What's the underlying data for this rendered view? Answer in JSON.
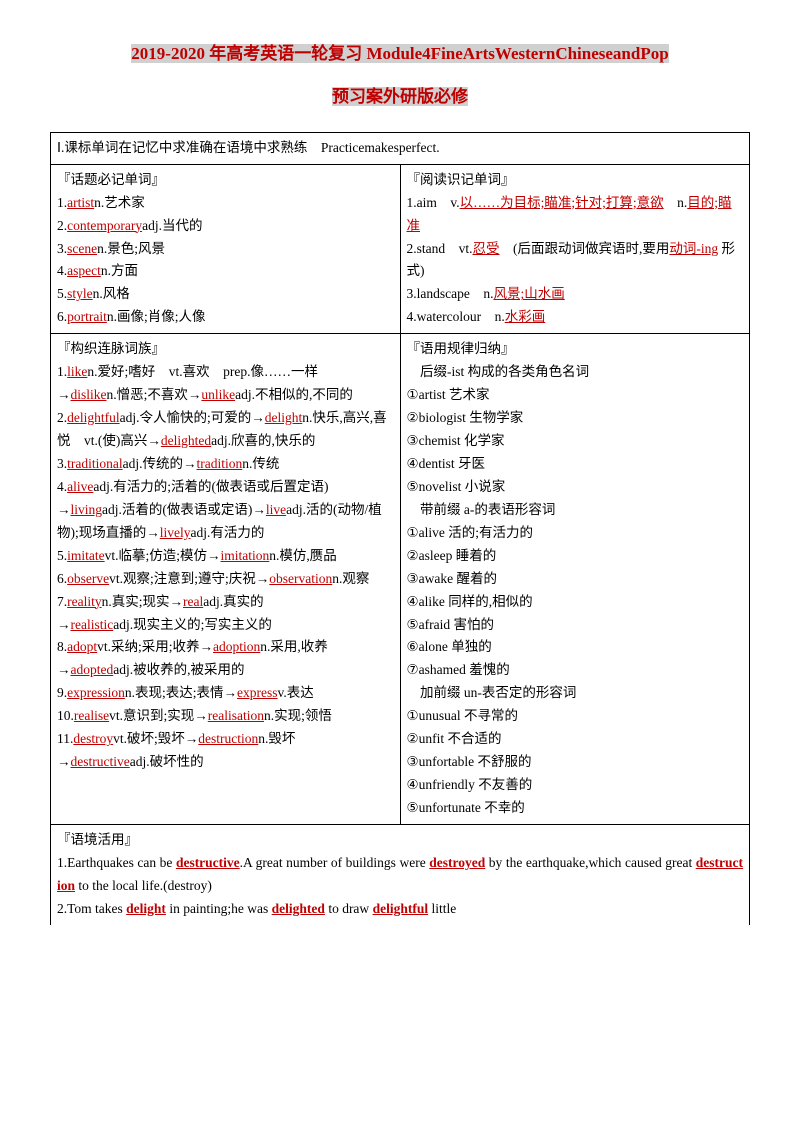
{
  "title": {
    "line1": "2019-2020 年高考英语一轮复习 Module4FineArtsWesternChineseandPop",
    "line2": "预习案外研版必修"
  },
  "section1_header": "Ⅰ.课标单词在记忆中求准确在语境中求熟练　Practicemakesperfect.",
  "topic_words": {
    "heading": "『话题必记单词』",
    "items_prefix": [
      "1.",
      "2.",
      "3.",
      "4.",
      "5.",
      "6."
    ],
    "words": [
      "artist",
      "contemporary",
      "scene",
      "aspect",
      "style",
      "portrait"
    ],
    "pos_def": [
      "n.艺术家",
      "adj.当代的",
      "n.景色;风景",
      "n.方面",
      "n.风格",
      "n.画像;肖像;人像"
    ]
  },
  "reading_words": {
    "heading": "『阅读识记单词』",
    "i1a": "1.aim　v.",
    "i1b": "以……为目标;瞄准;针对;打算;意欲",
    "i1c": "　n.",
    "i1d": "目的;瞄准",
    "i2a": "2.stand　vt.",
    "i2b": "忍受",
    "i2c": "　(后面跟动词做宾语时,要用",
    "i2d": "动词-ing",
    "i2e": " 形式)",
    "i3a": "3.landscape　n.",
    "i3b": "风景;山水画",
    "i4a": "4.watercolour　n.",
    "i4b": "水彩画"
  },
  "family": {
    "heading": "『构织连脉词族』",
    "l1a": "1.",
    "l1w1": "like",
    "l1b": "n.爱好;嗜好　vt.喜欢　prep.像……一样",
    "l1c": "→",
    "l1w2": "dislike",
    "l1d": "n.憎恶;不喜欢→",
    "l1w3": "unlike",
    "l1e": "adj.不相似的,不同的",
    "l2a": "2.",
    "l2w1": "delightful",
    "l2b": "adj.令人愉快的;可爱的→",
    "l2w2": "delight",
    "l2c": "n.快乐,高兴,喜悦　vt.(使)高兴→",
    "l2w3": "delighted",
    "l2d": "adj.欣喜的,快乐的",
    "l3a": "3.",
    "l3w1": "traditional",
    "l3b": "adj.传统的→",
    "l3w2": "tradition",
    "l3c": "n.传统",
    "l4a": "4.",
    "l4w1": "alive",
    "l4b": "adj.有活力的;活着的(做表语或后置定语)",
    "l4c": "→",
    "l4w2": "living",
    "l4d": "adj.活着的(做表语或定语)→",
    "l4w3": "live",
    "l4e": "adj.活的(动物/植物);现场直播的→",
    "l4w4": "lively",
    "l4f": "adj.有活力的",
    "l5a": "5.",
    "l5w1": "imitate",
    "l5b": "vt.临摹;仿造;模仿→",
    "l5w2": "imitation",
    "l5c": "n.模仿,赝品",
    "l6a": "6.",
    "l6w1": "observe",
    "l6b": "vt.观察;注意到;遵守;庆祝→",
    "l6w2": "observation",
    "l6c": "n.观察",
    "l7a": "7.",
    "l7w1": "reality",
    "l7b": "n.真实;现实→",
    "l7w2": "real",
    "l7c": "adj.真实的",
    "l7d": "→",
    "l7w3": "realistic",
    "l7e": "adj.现实主义的;写实主义的",
    "l8a": "8.",
    "l8w1": "adopt",
    "l8b": "vt.采纳;采用;收养→",
    "l8w2": "adoption",
    "l8c": "n.采用,收养",
    "l8d": "→",
    "l8w3": "adopted",
    "l8e": "adj.被收养的,被采用的",
    "l9a": "9.",
    "l9w1": "expression",
    "l9b": "n.表现;表达;表情→",
    "l9w2": "express",
    "l9c": "v.表达",
    "l10a": "10.",
    "l10w1": "realise",
    "l10b": "vt.意识到;实现→",
    "l10w2": "realisation",
    "l10c": "n.实现;领悟",
    "l11a": "11.",
    "l11w1": "destroy",
    "l11b": "vt.破坏;毁坏→",
    "l11w2": "destruction",
    "l11c": "n.毁坏",
    "l11d": "→",
    "l11w3": "destructive",
    "l11e": "adj.破坏性的"
  },
  "rules": {
    "heading": "『语用规律归纳』",
    "sub1": "　后缀-ist 构成的各类角色名词",
    "r1": "①artist 艺术家",
    "r2": "②biologist 生物学家",
    "r3": "③chemist 化学家",
    "r4": "④dentist 牙医",
    "r5": "⑤novelist 小说家",
    "sub2": "　带前缀 a-的表语形容词",
    "a1": "①alive 活的;有活力的",
    "a2": "②asleep 睡着的",
    "a3": "③awake 醒着的",
    "a4": "④alike 同样的,相似的",
    "a5": "⑤afraid 害怕的",
    "a6": "⑥alone 单独的",
    "a7": "⑦ashamed 羞愧的",
    "sub3": "　加前缀 un-表否定的形容词",
    "u1": "①unusual 不寻常的",
    "u2": "②unfit 不合适的",
    "u3": "③unfortable 不舒服的",
    "u4": "④unfriendly 不友善的",
    "u5": "⑤unfortunate 不幸的"
  },
  "usage": {
    "heading": "『语境活用』",
    "s1a": "1.Earthquakes can be ",
    "s1w1": "destructive",
    "s1b": ".A great number of buildings were ",
    "s1w2": "destroyed",
    "s1c": "by the earthquake,which caused great ",
    "s1w3": "destruction",
    "s1d": " to the local life.(destroy)",
    "s2a": "2.Tom takes ",
    "s2w1": "delight",
    "s2b": " in painting;he was ",
    "s2w2": "delighted",
    "s2c": " to draw ",
    "s2w3": "delightful",
    "s2d": " little"
  }
}
